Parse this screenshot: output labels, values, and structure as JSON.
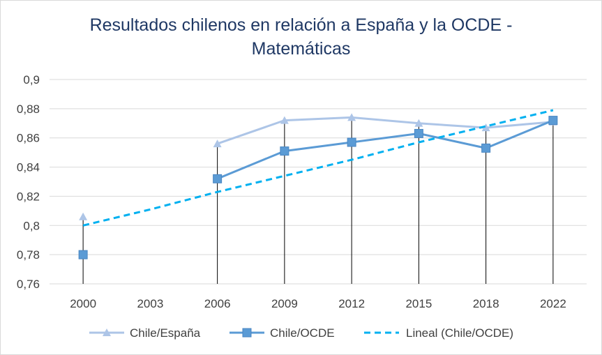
{
  "chart_data": {
    "type": "line",
    "title_line1": "Resultados chilenos en relación a España y la OCDE -",
    "title_line2": "Matemáticas",
    "categories": [
      "2000",
      "2003",
      "2006",
      "2009",
      "2012",
      "2015",
      "2018",
      "2022"
    ],
    "ylim": [
      0.76,
      0.9
    ],
    "yticks": [
      "0,76",
      "0,78",
      "0,8",
      "0,82",
      "0,84",
      "0,86",
      "0,88",
      "0,9"
    ],
    "grid": true,
    "legend_position": "bottom",
    "series": [
      {
        "name": "Chile/España",
        "marker": "triangle",
        "color": "#adc5e7",
        "values": [
          0.806,
          null,
          0.856,
          0.872,
          0.874,
          0.87,
          0.867,
          0.871
        ]
      },
      {
        "name": "Chile/OCDE",
        "marker": "square",
        "color": "#5b9bd5",
        "values": [
          0.78,
          null,
          0.832,
          0.851,
          0.857,
          0.863,
          0.853,
          0.872
        ]
      },
      {
        "name": "Lineal (Chile/OCDE)",
        "marker": "none",
        "style": "dashed",
        "color": "#00b0f0",
        "values": [
          0.8,
          0.811,
          0.823,
          0.834,
          0.845,
          0.857,
          0.868,
          0.879
        ]
      }
    ],
    "drop_lines": true
  }
}
